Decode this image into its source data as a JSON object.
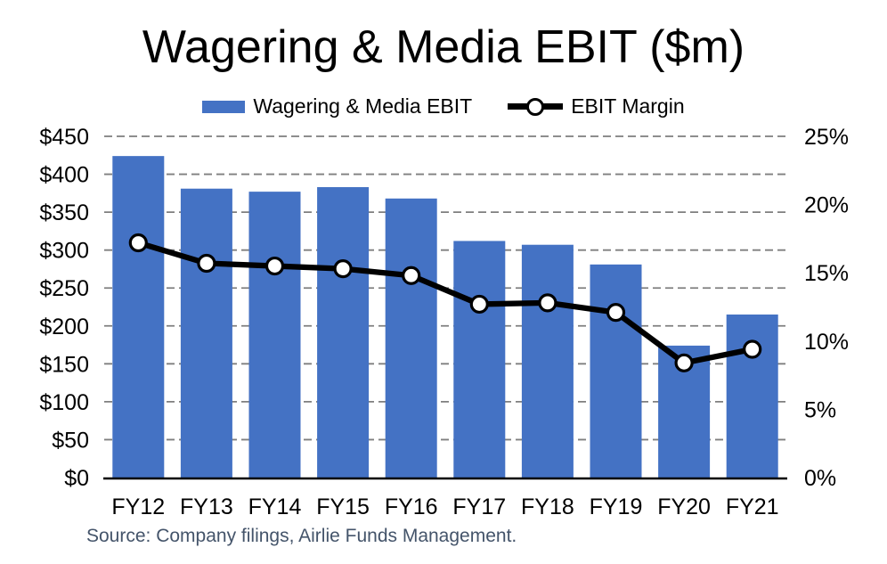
{
  "source_note": "Source: Company filings, Airlie Funds Management.",
  "colors": {
    "bar": "#4472C4",
    "line": "#000000",
    "marker_fill": "#FFFFFF",
    "grid": "#7F7F7F",
    "axis": "#000000",
    "tick_text": "#000000",
    "source_text": "#44546A",
    "background": "#FFFFFF"
  },
  "chart_data": {
    "type": "bar",
    "subtype": "combo-bar-line",
    "title": "Wagering & Media EBIT ($m)",
    "categories": [
      "FY12",
      "FY13",
      "FY14",
      "FY15",
      "FY16",
      "FY17",
      "FY18",
      "FY19",
      "FY20",
      "FY21"
    ],
    "series": [
      {
        "name": "Wagering & Media EBIT",
        "kind": "bar",
        "axis": "left",
        "color": "#4472C4",
        "values": [
          424,
          381,
          377,
          383,
          368,
          312,
          307,
          281,
          174,
          215
        ]
      },
      {
        "name": "EBIT Margin",
        "kind": "line",
        "axis": "right",
        "color": "#000000",
        "marker": "circle-white-black-outline",
        "values": [
          17.2,
          15.7,
          15.5,
          15.3,
          14.8,
          12.7,
          12.8,
          12.1,
          8.4,
          9.4
        ]
      }
    ],
    "left_axis": {
      "min": 0,
      "max": 450,
      "step": 50,
      "tick_labels": [
        "$0",
        "$50",
        "$100",
        "$150",
        "$200",
        "$250",
        "$300",
        "$350",
        "$400",
        "$450"
      ]
    },
    "right_axis": {
      "min": 0,
      "max": 25,
      "step": 5,
      "tick_labels": [
        "0%",
        "5%",
        "10%",
        "15%",
        "20%",
        "25%"
      ]
    },
    "grid": "horizontal-dashed",
    "legend_position": "top"
  }
}
